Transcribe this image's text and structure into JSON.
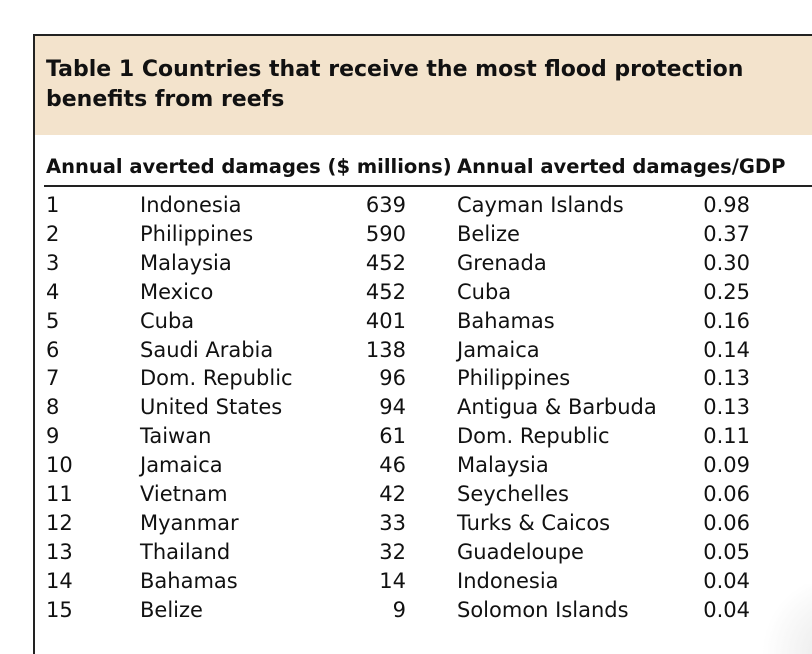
{
  "table": {
    "title": "Table 1 Countries that receive the most flood protection benefits from reefs",
    "header_left": "Annual averted damages ($ millions)",
    "header_right": "Annual averted damages/GDP",
    "rows": [
      {
        "rank": "1",
        "country": "Indonesia",
        "damages": "639",
        "country_gdp": "Cayman Islands",
        "ratio": "0.98"
      },
      {
        "rank": "2",
        "country": "Philippines",
        "damages": "590",
        "country_gdp": "Belize",
        "ratio": "0.37"
      },
      {
        "rank": "3",
        "country": "Malaysia",
        "damages": "452",
        "country_gdp": "Grenada",
        "ratio": "0.30"
      },
      {
        "rank": "4",
        "country": "Mexico",
        "damages": "452",
        "country_gdp": "Cuba",
        "ratio": "0.25"
      },
      {
        "rank": "5",
        "country": "Cuba",
        "damages": "401",
        "country_gdp": "Bahamas",
        "ratio": "0.16"
      },
      {
        "rank": "6",
        "country": "Saudi Arabia",
        "damages": "138",
        "country_gdp": "Jamaica",
        "ratio": "0.14"
      },
      {
        "rank": "7",
        "country": "Dom. Republic",
        "damages": "96",
        "country_gdp": "Philippines",
        "ratio": "0.13"
      },
      {
        "rank": "8",
        "country": "United States",
        "damages": "94",
        "country_gdp": "Antigua & Barbuda",
        "ratio": "0.13"
      },
      {
        "rank": "9",
        "country": "Taiwan",
        "damages": "61",
        "country_gdp": "Dom. Republic",
        "ratio": "0.11"
      },
      {
        "rank": "10",
        "country": "Jamaica",
        "damages": "46",
        "country_gdp": "Malaysia",
        "ratio": "0.09"
      },
      {
        "rank": "11",
        "country": "Vietnam",
        "damages": "42",
        "country_gdp": "Seychelles",
        "ratio": "0.06"
      },
      {
        "rank": "12",
        "country": "Myanmar",
        "damages": "33",
        "country_gdp": "Turks & Caicos",
        "ratio": "0.06"
      },
      {
        "rank": "13",
        "country": "Thailand",
        "damages": "32",
        "country_gdp": "Guadeloupe",
        "ratio": "0.05"
      },
      {
        "rank": "14",
        "country": "Bahamas",
        "damages": "14",
        "country_gdp": "Indonesia",
        "ratio": "0.04"
      },
      {
        "rank": "15",
        "country": "Belize",
        "damages": "9",
        "country_gdp": "Solomon Islands",
        "ratio": "0.04"
      }
    ]
  },
  "colors": {
    "title_band": "#f3e3cc",
    "rule": "#222222",
    "text": "#111111"
  }
}
